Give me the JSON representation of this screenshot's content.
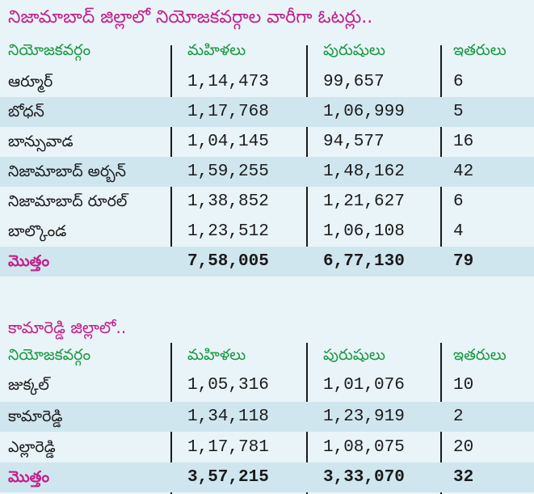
{
  "title": "నిజామాబాద్ జిల్లాలో నియోజకవర్గాల వారీగా ఓటర్లు..",
  "subtitle": "కామారెడ్డి జిల్లాలో..",
  "headers": [
    "నియోజకవర్గం",
    "మహిళలు",
    "పురుషులు",
    "ఇతరులు"
  ],
  "nizamabad": {
    "rows": [
      {
        "name": "ఆర్మూర్",
        "women": "1,14,473",
        "men": "99,657",
        "others": "6"
      },
      {
        "name": "బోధన్",
        "women": "1,17,768",
        "men": "1,06,999",
        "others": "5"
      },
      {
        "name": "బాన్సువాడ",
        "women": "1,04,145",
        "men": "94,577",
        "others": "16"
      },
      {
        "name": "నిజామాబాద్ అర్బన్",
        "women": "1,59,255",
        "men": "1,48,162",
        "others": "42"
      },
      {
        "name": "నిజామాబాద్ రూరల్",
        "women": "1,38,852",
        "men": "1,21,627",
        "others": "6"
      },
      {
        "name": "బాల్కొండ",
        "women": "1,23,512",
        "men": "1,06,108",
        "others": "4"
      }
    ],
    "total": {
      "name": "మొత్తం",
      "women": "7,58,005",
      "men": "6,77,130",
      "others": "79"
    }
  },
  "kamareddy": {
    "rows": [
      {
        "name": "జుక్కల్",
        "women": "1,05,316",
        "men": "1,01,076",
        "others": "10"
      },
      {
        "name": "కామారెడ్డి",
        "women": "1,34,118",
        "men": "1,23,919",
        "others": "2"
      },
      {
        "name": "ఎల్లారెడ్డి",
        "women": "1,17,781",
        "men": "1,08,075",
        "others": "20"
      }
    ],
    "total": {
      "name": "మొత్తం",
      "women": "3,57,215",
      "men": "3,33,070",
      "others": "32"
    }
  },
  "colors": {
    "title": "#c3208a",
    "header": "#189840",
    "background": "#e9f4f8",
    "shade": "#cfe6ef"
  }
}
